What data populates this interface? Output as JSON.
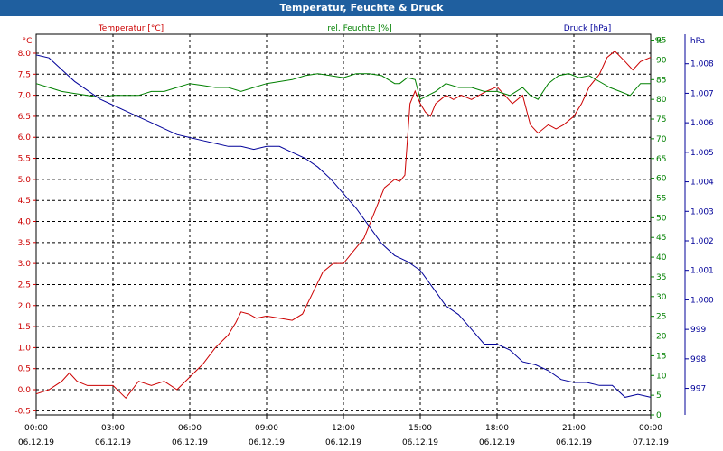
{
  "window": {
    "title": "Temperatur, Feuchte & Druck"
  },
  "chart_data": {
    "type": "line",
    "x_ticks": [
      {
        "time": "00:00",
        "date": "06.12.19"
      },
      {
        "time": "03:00",
        "date": "06.12.19"
      },
      {
        "time": "06:00",
        "date": "06.12.19"
      },
      {
        "time": "09:00",
        "date": "06.12.19"
      },
      {
        "time": "12:00",
        "date": "06.12.19"
      },
      {
        "time": "15:00",
        "date": "06.12.19"
      },
      {
        "time": "18:00",
        "date": "06.12.19"
      },
      {
        "time": "21:00",
        "date": "06.12.19"
      },
      {
        "time": "00:00",
        "date": "07.12.19"
      }
    ],
    "x_range_hours": [
      0,
      24
    ],
    "grid": true,
    "axes": {
      "temperature": {
        "unit": "°C",
        "range": [
          -0.6,
          8.45
        ],
        "ticks": [
          "-0.5",
          "0.0",
          "0.5",
          "1.0",
          "1.5",
          "2.0",
          "2.5",
          "3.0",
          "3.5",
          "4.0",
          "4.5",
          "5.0",
          "5.5",
          "6.0",
          "6.5",
          "7.0",
          "7.5",
          "8.0"
        ],
        "color": "#cc0000"
      },
      "humidity": {
        "unit": "%",
        "range": [
          0,
          96.5
        ],
        "ticks": [
          "0",
          "5",
          "10",
          "15",
          "20",
          "25",
          "30",
          "35",
          "40",
          "45",
          "50",
          "55",
          "60",
          "65",
          "70",
          "75",
          "80",
          "85",
          "90",
          "95"
        ],
        "color": "#008000"
      },
      "pressure": {
        "unit": "hPa",
        "range": [
          996.1,
          1009.0
        ],
        "ticks": [
          "997",
          "998",
          "999",
          "1.000",
          "1.001",
          "1.002",
          "1.003",
          "1.004",
          "1.005",
          "1.006",
          "1.007",
          "1.008"
        ],
        "color": "#000099"
      }
    },
    "series": [
      {
        "name": "Temperatur [°C]",
        "axis": "temperature",
        "color": "#cc0000",
        "x": [
          0,
          0.5,
          1,
          1.3,
          1.6,
          2,
          2.5,
          3,
          3.5,
          4,
          4.5,
          5,
          5.5,
          6,
          6.5,
          7,
          7.5,
          7.8,
          8,
          8.3,
          8.6,
          9,
          9.5,
          10,
          10.4,
          10.8,
          11.2,
          11.6,
          12,
          12.4,
          12.8,
          13.2,
          13.6,
          14,
          14.2,
          14.4,
          14.6,
          14.8,
          15,
          15.2,
          15.4,
          15.6,
          15.8,
          16,
          16.3,
          16.6,
          17,
          17.3,
          17.6,
          18,
          18.3,
          18.6,
          19,
          19.3,
          19.6,
          20,
          20.3,
          20.6,
          21,
          21.3,
          21.6,
          22,
          22.3,
          22.6,
          23,
          23.3,
          23.6,
          24
        ],
        "y": [
          -0.1,
          0.0,
          0.2,
          0.4,
          0.2,
          0.1,
          0.1,
          0.1,
          -0.2,
          0.2,
          0.1,
          0.2,
          0.0,
          0.3,
          0.6,
          1.0,
          1.3,
          1.6,
          1.85,
          1.8,
          1.7,
          1.75,
          1.7,
          1.65,
          1.8,
          2.3,
          2.8,
          3.0,
          3.0,
          3.3,
          3.6,
          4.2,
          4.8,
          5.0,
          4.95,
          5.1,
          6.8,
          7.1,
          6.8,
          6.6,
          6.5,
          6.8,
          6.9,
          7.0,
          6.9,
          7.0,
          6.9,
          7.0,
          7.1,
          7.2,
          7.0,
          6.8,
          7.0,
          6.3,
          6.1,
          6.3,
          6.2,
          6.3,
          6.5,
          6.8,
          7.2,
          7.5,
          7.9,
          8.05,
          7.8,
          7.6,
          7.8,
          7.9
        ]
      },
      {
        "name": "rel. Feuchte [%]",
        "axis": "humidity",
        "color": "#008000",
        "x": [
          0,
          0.5,
          1,
          1.5,
          2,
          2.5,
          3,
          3.5,
          4,
          4.5,
          5,
          5.5,
          6,
          6.5,
          7,
          7.5,
          8,
          8.5,
          9,
          9.5,
          10,
          10.5,
          11,
          11.5,
          12,
          12.5,
          13,
          13.5,
          14,
          14.2,
          14.5,
          14.8,
          15,
          15.3,
          15.6,
          16,
          16.5,
          17,
          17.5,
          18,
          18.5,
          19,
          19.3,
          19.6,
          20,
          20.4,
          20.8,
          21.2,
          21.6,
          22,
          22.4,
          22.8,
          23.2,
          23.6,
          24
        ],
        "y": [
          84,
          83,
          82,
          81.5,
          81,
          80.5,
          81,
          81,
          81,
          82,
          82,
          83,
          84,
          83.5,
          83,
          83,
          82,
          83,
          84,
          84.5,
          85,
          86,
          86.5,
          86,
          85.5,
          86.5,
          86.5,
          86,
          84,
          84,
          85.5,
          85,
          80,
          81,
          82,
          84,
          83,
          83,
          82,
          82,
          81,
          83,
          81,
          80,
          84,
          86,
          86.5,
          85.5,
          86,
          84.5,
          83,
          82,
          81,
          84,
          84
        ]
      },
      {
        "name": "Druck [hPa]",
        "axis": "pressure",
        "color": "#000099",
        "x": [
          0,
          0.5,
          1,
          1.5,
          2,
          2.5,
          3,
          3.5,
          4,
          4.5,
          5,
          5.5,
          6,
          6.5,
          7,
          7.5,
          8,
          8.5,
          9,
          9.5,
          10,
          10.5,
          11,
          11.5,
          12,
          12.5,
          13,
          13.5,
          14,
          14.5,
          15,
          15.5,
          16,
          16.5,
          17,
          17.5,
          18,
          18.5,
          19,
          19.5,
          20,
          20.5,
          21,
          21.5,
          22,
          22.5,
          23,
          23.5,
          24
        ],
        "y": [
          1008.3,
          1008.2,
          1007.8,
          1007.4,
          1007.1,
          1006.8,
          1006.6,
          1006.4,
          1006.2,
          1006.0,
          1005.8,
          1005.6,
          1005.5,
          1005.4,
          1005.3,
          1005.2,
          1005.2,
          1005.1,
          1005.2,
          1005.2,
          1005.0,
          1004.8,
          1004.5,
          1004.1,
          1003.6,
          1003.1,
          1002.5,
          1001.9,
          1001.5,
          1001.3,
          1001.0,
          1000.4,
          999.8,
          999.5,
          999.0,
          998.5,
          998.5,
          998.3,
          997.9,
          997.8,
          997.6,
          997.3,
          997.2,
          997.2,
          997.1,
          997.1,
          996.7,
          996.8,
          996.7
        ]
      }
    ]
  }
}
